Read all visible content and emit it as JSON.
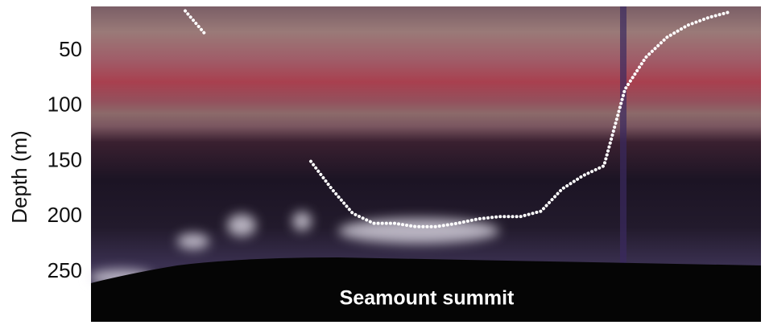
{
  "chart_data": {
    "type": "line",
    "ylabel": "Depth (m)",
    "annotation": "Seamount summit",
    "ylim": [
      10,
      295
    ],
    "inverted": true,
    "yticks": [
      50,
      100,
      150,
      200,
      250
    ],
    "categories": [
      null,
      null,
      null,
      null,
      null,
      null,
      null,
      null,
      null,
      null,
      null,
      null,
      null,
      null,
      null,
      null,
      null,
      null,
      null,
      null,
      null,
      null,
      null,
      null,
      null,
      null,
      null,
      null,
      null,
      null,
      null,
      null
    ],
    "series": [
      {
        "color": "#ffffff",
        "values": [
          null,
          null,
          null,
          null,
          14,
          36,
          null,
          null,
          null,
          null,
          150,
          175,
          197,
          206,
          206,
          209,
          209,
          206,
          202,
          200,
          200,
          195,
          175,
          163,
          154,
          85,
          56,
          38,
          27,
          20,
          15,
          null
        ]
      }
    ]
  }
}
